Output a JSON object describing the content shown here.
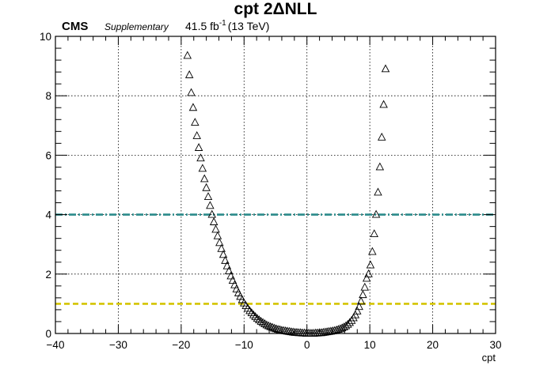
{
  "header": {
    "title": "cpt 2ΔNLL",
    "experiment": "CMS",
    "status": "Supplementary",
    "lumi": "41.5 fb",
    "lumi_exp": "-1",
    "energy": "(13 TeV)"
  },
  "colors": {
    "ci_2sigma_line": "#2a8a8a",
    "ci_1sigma_line": "#d4c400",
    "markers": "#000000"
  },
  "chart_data": {
    "type": "scatter",
    "title": "cpt 2ΔNLL",
    "xlabel": "cpt",
    "ylabel": "",
    "xlim": [
      -40,
      30
    ],
    "ylim": [
      0,
      10
    ],
    "xticks": [
      "−40",
      "−30",
      "−20",
      "−10",
      "0",
      "10",
      "20",
      "30"
    ],
    "yticks": [
      "0",
      "2",
      "4",
      "6",
      "8",
      "10"
    ],
    "grid": true,
    "marker": "open-triangle",
    "hlines": [
      {
        "y": 4,
        "style": "dash-dot",
        "color": "#2a8a8a"
      },
      {
        "y": 1,
        "style": "dashed",
        "color": "#d4c400"
      }
    ],
    "series": [
      {
        "points": [
          [
            -19.0,
            9.35
          ],
          [
            -18.7,
            8.7
          ],
          [
            -18.4,
            8.1
          ],
          [
            -18.1,
            7.6
          ],
          [
            -17.8,
            7.1
          ],
          [
            -17.5,
            6.65
          ],
          [
            -17.2,
            6.25
          ],
          [
            -16.9,
            5.9
          ],
          [
            -16.6,
            5.55
          ],
          [
            -16.3,
            5.2
          ],
          [
            -16.0,
            4.9
          ],
          [
            -15.7,
            4.6
          ],
          [
            -15.4,
            4.3
          ],
          [
            -15.1,
            4.0
          ],
          [
            -14.8,
            3.75
          ],
          [
            -14.5,
            3.5
          ],
          [
            -14.2,
            3.28
          ],
          [
            -13.9,
            3.05
          ],
          [
            -13.6,
            2.85
          ],
          [
            -13.3,
            2.65
          ],
          [
            -13.0,
            2.45
          ],
          [
            -12.7,
            2.27
          ],
          [
            -12.4,
            2.1
          ],
          [
            -12.1,
            1.93
          ],
          [
            -11.8,
            1.78
          ],
          [
            -11.5,
            1.63
          ],
          [
            -11.2,
            1.49
          ],
          [
            -10.9,
            1.36
          ],
          [
            -10.6,
            1.24
          ],
          [
            -10.3,
            1.13
          ],
          [
            -10.0,
            1.02
          ],
          [
            -9.7,
            0.93
          ],
          [
            -9.4,
            0.84
          ],
          [
            -9.1,
            0.76
          ],
          [
            -8.8,
            0.69
          ],
          [
            -8.5,
            0.62
          ],
          [
            -8.2,
            0.56
          ],
          [
            -7.9,
            0.5
          ],
          [
            -7.6,
            0.45
          ],
          [
            -7.3,
            0.4
          ],
          [
            -7.0,
            0.36
          ],
          [
            -6.7,
            0.32
          ],
          [
            -6.4,
            0.28
          ],
          [
            -6.1,
            0.25
          ],
          [
            -5.8,
            0.22
          ],
          [
            -5.5,
            0.2
          ],
          [
            -5.2,
            0.17
          ],
          [
            -4.9,
            0.15
          ],
          [
            -4.6,
            0.13
          ],
          [
            -4.3,
            0.12
          ],
          [
            -4.0,
            0.1
          ],
          [
            -3.7,
            0.09
          ],
          [
            -3.4,
            0.08
          ],
          [
            -3.1,
            0.07
          ],
          [
            -2.8,
            0.06
          ],
          [
            -2.5,
            0.05
          ],
          [
            -2.2,
            0.04
          ],
          [
            -1.9,
            0.03
          ],
          [
            -1.6,
            0.03
          ],
          [
            -1.3,
            0.02
          ],
          [
            -1.0,
            0.02
          ],
          [
            -0.7,
            0.01
          ],
          [
            -0.4,
            0.01
          ],
          [
            -0.1,
            0.0
          ],
          [
            0.2,
            0.0
          ],
          [
            0.5,
            0.0
          ],
          [
            0.8,
            0.0
          ],
          [
            1.1,
            0.0
          ],
          [
            1.4,
            0.01
          ],
          [
            1.7,
            0.01
          ],
          [
            2.0,
            0.02
          ],
          [
            2.3,
            0.02
          ],
          [
            2.6,
            0.03
          ],
          [
            2.9,
            0.04
          ],
          [
            3.2,
            0.05
          ],
          [
            3.5,
            0.06
          ],
          [
            3.8,
            0.07
          ],
          [
            4.1,
            0.08
          ],
          [
            4.4,
            0.09
          ],
          [
            4.7,
            0.11
          ],
          [
            5.0,
            0.13
          ],
          [
            5.3,
            0.15
          ],
          [
            5.6,
            0.18
          ],
          [
            5.9,
            0.21
          ],
          [
            6.2,
            0.25
          ],
          [
            6.5,
            0.3
          ],
          [
            6.8,
            0.36
          ],
          [
            7.1,
            0.43
          ],
          [
            7.4,
            0.52
          ],
          [
            7.7,
            0.62
          ],
          [
            8.0,
            0.75
          ],
          [
            8.3,
            0.9
          ],
          [
            8.6,
            1.08
          ],
          [
            8.9,
            1.3
          ],
          [
            9.2,
            1.55
          ],
          [
            9.5,
            1.85
          ],
          [
            9.8,
            2.0
          ],
          [
            10.1,
            2.3
          ],
          [
            10.4,
            2.75
          ],
          [
            10.7,
            3.35
          ],
          [
            11.0,
            4.0
          ],
          [
            11.3,
            4.75
          ],
          [
            11.6,
            5.6
          ],
          [
            11.9,
            6.6
          ],
          [
            12.2,
            7.7
          ],
          [
            12.5,
            8.9
          ]
        ]
      }
    ]
  }
}
